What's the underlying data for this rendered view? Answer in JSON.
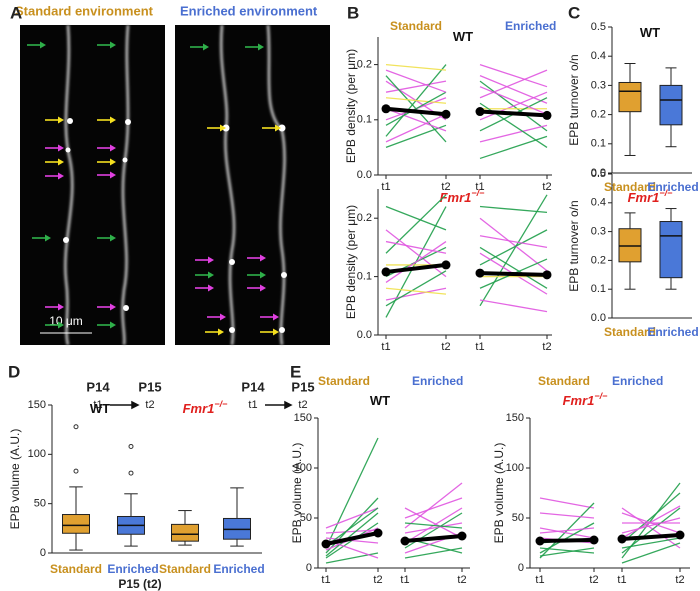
{
  "figure": {
    "panel_labels": [
      "A",
      "B",
      "C",
      "D",
      "E"
    ]
  },
  "panel_A": {
    "titles": [
      {
        "text": "Standard environment",
        "color": "#c8901e"
      },
      {
        "text": "Enriched environment",
        "color": "#4a6fd0"
      }
    ],
    "scale_bar": "10 μm",
    "timepoints": [
      {
        "day": "P14",
        "time": "t1"
      },
      {
        "day": "P15",
        "time": "t2"
      }
    ]
  },
  "chart_data": [
    {
      "type": "paired-line",
      "title": "WT",
      "title_color": "#111111",
      "ylabel": "EPB density (per μm)",
      "ylim": [
        0,
        0.25
      ],
      "yticks": [
        {
          "value": 0,
          "label": "0.0"
        },
        0.1,
        0.2
      ],
      "groups": [
        {
          "label": "Standard",
          "label_color": "#c8901e",
          "xticks": [
            "t1",
            "t2"
          ],
          "mean": [
            0.12,
            0.11
          ],
          "lines": [
            {
              "color": "#e055e0",
              "values": [
                0.17,
                0.1
              ]
            },
            {
              "color": "#e055e0",
              "values": [
                0.15,
                0.17
              ]
            },
            {
              "color": "#1f9e4a",
              "values": [
                0.07,
                0.2
              ]
            },
            {
              "color": "#1f9e4a",
              "values": [
                0.18,
                0.06
              ]
            },
            {
              "color": "#f0e04a",
              "values": [
                0.2,
                0.19
              ]
            },
            {
              "color": "#e055e0",
              "values": [
                0.1,
                0.14
              ]
            },
            {
              "color": "#1f9e4a",
              "values": [
                0.05,
                0.09
              ]
            },
            {
              "color": "#e055e0",
              "values": [
                0.12,
                0.08
              ]
            },
            {
              "color": "#f0e04a",
              "values": [
                0.14,
                0.13
              ]
            },
            {
              "color": "#1f9e4a",
              "values": [
                0.09,
                0.15
              ]
            },
            {
              "color": "#e055e0",
              "values": [
                0.06,
                0.11
              ]
            },
            {
              "color": "#e055e0",
              "values": [
                0.19,
                0.15
              ]
            }
          ]
        },
        {
          "label": "Enriched",
          "label_color": "#4a6fd0",
          "xticks": [
            "t1",
            "t2"
          ],
          "mean": [
            0.115,
            0.108
          ],
          "lines": [
            {
              "color": "#e055e0",
              "values": [
                0.18,
                0.13
              ]
            },
            {
              "color": "#1f9e4a",
              "values": [
                0.17,
                0.08
              ]
            },
            {
              "color": "#e055e0",
              "values": [
                0.14,
                0.19
              ]
            },
            {
              "color": "#1f9e4a",
              "values": [
                0.03,
                0.07
              ]
            },
            {
              "color": "#e055e0",
              "values": [
                0.1,
                0.15
              ]
            },
            {
              "color": "#f0e04a",
              "values": [
                0.12,
                0.12
              ]
            },
            {
              "color": "#1f9e4a",
              "values": [
                0.08,
                0.14
              ]
            },
            {
              "color": "#e055e0",
              "values": [
                0.16,
                0.11
              ]
            },
            {
              "color": "#e055e0",
              "values": [
                0.06,
                0.09
              ]
            },
            {
              "color": "#1f9e4a",
              "values": [
                0.13,
                0.05
              ]
            },
            {
              "color": "#e055e0",
              "values": [
                0.2,
                0.16
              ]
            }
          ]
        }
      ]
    },
    {
      "type": "paired-line",
      "title": "Fmr1",
      "title_sup": "−/−",
      "title_color": "#e0201e",
      "ylabel": "EPB density (per μm)",
      "ylim": [
        0,
        0.25
      ],
      "yticks": [
        {
          "value": 0,
          "label": "0.0"
        },
        0.1,
        0.2
      ],
      "groups": [
        {
          "xticks": [
            "t1",
            "t2"
          ],
          "mean": [
            0.108,
            0.12
          ],
          "lines": [
            {
              "color": "#1f9e4a",
              "values": [
                0.03,
                0.22
              ]
            },
            {
              "color": "#1f9e4a",
              "values": [
                0.14,
                0.24
              ]
            },
            {
              "color": "#e055e0",
              "values": [
                0.18,
                0.1
              ]
            },
            {
              "color": "#1f9e4a",
              "values": [
                0.1,
                0.15
              ]
            },
            {
              "color": "#f0e04a",
              "values": [
                0.12,
                0.12
              ]
            },
            {
              "color": "#e055e0",
              "values": [
                0.06,
                0.08
              ]
            },
            {
              "color": "#1f9e4a",
              "values": [
                0.22,
                0.18
              ]
            },
            {
              "color": "#e055e0",
              "values": [
                0.09,
                0.16
              ]
            },
            {
              "color": "#1f9e4a",
              "values": [
                0.05,
                0.11
              ]
            },
            {
              "color": "#e055e0",
              "values": [
                0.16,
                0.14
              ]
            },
            {
              "color": "#f0e04a",
              "values": [
                0.08,
                0.07
              ]
            }
          ]
        },
        {
          "xticks": [
            "t1",
            "t2"
          ],
          "mean": [
            0.106,
            0.103
          ],
          "lines": [
            {
              "color": "#1f9e4a",
              "values": [
                0.05,
                0.24
              ]
            },
            {
              "color": "#e055e0",
              "values": [
                0.2,
                0.11
              ]
            },
            {
              "color": "#1f9e4a",
              "values": [
                0.12,
                0.18
              ]
            },
            {
              "color": "#e055e0",
              "values": [
                0.14,
                0.07
              ]
            },
            {
              "color": "#f0e04a",
              "values": [
                0.1,
                0.1
              ]
            },
            {
              "color": "#1f9e4a",
              "values": [
                0.08,
                0.13
              ]
            },
            {
              "color": "#e055e0",
              "values": [
                0.17,
                0.15
              ]
            },
            {
              "color": "#1f9e4a",
              "values": [
                0.22,
                0.21
              ]
            },
            {
              "color": "#e055e0",
              "values": [
                0.06,
                0.04
              ]
            },
            {
              "color": "#1f9e4a",
              "values": [
                0.15,
                0.08
              ]
            }
          ]
        }
      ]
    },
    {
      "type": "box",
      "title": "WT",
      "title_color": "#111111",
      "ylabel": "EPB turnover o/n",
      "ylim": [
        0,
        0.5
      ],
      "yticks": [
        {
          "value": 0,
          "label": "0.0"
        },
        0.1,
        0.2,
        0.3,
        0.4,
        0.5
      ],
      "boxes": [
        {
          "label": "Standard",
          "label_color": "#c8901e",
          "color": "#e0a030",
          "whisker_low": 0.06,
          "q1": 0.21,
          "median": 0.28,
          "q3": 0.31,
          "whisker_high": 0.375
        },
        {
          "label": "Enriched",
          "label_color": "#4a6fd0",
          "color": "#4a78d8",
          "whisker_low": 0.09,
          "q1": 0.165,
          "median": 0.25,
          "q3": 0.3,
          "whisker_high": 0.36
        }
      ]
    },
    {
      "type": "box",
      "title": "Fmr1",
      "title_sup": "−/−",
      "title_color": "#e0201e",
      "ylabel": "EPB turnover o/n",
      "ylim": [
        0,
        0.5
      ],
      "yticks": [
        {
          "value": 0,
          "label": "0.0"
        },
        0.1,
        0.2,
        0.3,
        0.4,
        0.5
      ],
      "boxes": [
        {
          "label": "Standard",
          "label_color": "#c8901e",
          "color": "#e0a030",
          "whisker_low": 0.1,
          "q1": 0.195,
          "median": 0.25,
          "q3": 0.31,
          "whisker_high": 0.365
        },
        {
          "label": "Enriched",
          "label_color": "#4a6fd0",
          "color": "#4a78d8",
          "whisker_low": 0.1,
          "q1": 0.14,
          "median": 0.285,
          "q3": 0.335,
          "whisker_high": 0.38
        }
      ]
    },
    {
      "type": "box",
      "ylabel": "EPB volume (A.U.)",
      "xlabel": "P15 (t2)",
      "titles": [
        {
          "title": "WT",
          "title_color": "#111111"
        },
        {
          "title": "Fmr1",
          "title_sup": "−/−",
          "title_color": "#e0201e"
        }
      ],
      "ylim": [
        0,
        150
      ],
      "yticks": [
        0,
        50,
        100,
        150
      ],
      "boxes": [
        {
          "label": "Standard",
          "label_color": "#c8901e",
          "color": "#e0a030",
          "whisker_low": 3,
          "q1": 20,
          "median": 28,
          "q3": 39,
          "whisker_high": 67,
          "outliers": [
            83,
            128
          ]
        },
        {
          "label": "Enriched",
          "label_color": "#4a6fd0",
          "color": "#4a78d8",
          "whisker_low": 7,
          "q1": 19,
          "median": 28,
          "q3": 37,
          "whisker_high": 60,
          "outliers": [
            81,
            108
          ]
        },
        {
          "label": "Standard",
          "label_color": "#c8901e",
          "color": "#e0a030",
          "whisker_low": 8,
          "q1": 12,
          "median": 19,
          "q3": 29,
          "whisker_high": 43
        },
        {
          "label": "Enriched",
          "label_color": "#4a6fd0",
          "color": "#4a78d8",
          "whisker_low": 7,
          "q1": 14,
          "median": 24,
          "q3": 35,
          "whisker_high": 66
        }
      ]
    },
    {
      "type": "paired-line",
      "title": "WT",
      "title_color": "#111111",
      "ylabel": "EPB volume (A.U.)",
      "ylim": [
        0,
        150
      ],
      "yticks": [
        0,
        50,
        100,
        150
      ],
      "groups": [
        {
          "label": "Standard",
          "label_color": "#c8901e",
          "xticks": [
            "t1",
            "t2"
          ],
          "mean": [
            24,
            35
          ],
          "lines": [
            {
              "color": "#1f9e4a",
              "values": [
                20,
                130
              ]
            },
            {
              "color": "#1f9e4a",
              "values": [
                15,
                70
              ]
            },
            {
              "color": "#e055e0",
              "values": [
                40,
                60
              ]
            },
            {
              "color": "#1f9e4a",
              "values": [
                10,
                45
              ]
            },
            {
              "color": "#e055e0",
              "values": [
                30,
                25
              ]
            },
            {
              "color": "#1f9e4a",
              "values": [
                25,
                35
              ]
            },
            {
              "color": "#e055e0",
              "values": [
                18,
                40
              ]
            },
            {
              "color": "#1f9e4a",
              "values": [
                5,
                15
              ]
            },
            {
              "color": "#e055e0",
              "values": [
                35,
                38
              ]
            },
            {
              "color": "#1f9e4a",
              "values": [
                12,
                55
              ]
            },
            {
              "color": "#e055e0",
              "values": [
                28,
                10
              ]
            },
            {
              "color": "#1f9e4a",
              "values": [
                22,
                60
              ]
            }
          ]
        },
        {
          "label": "Enriched",
          "label_color": "#4a6fd0",
          "xticks": [
            "t1",
            "t2"
          ],
          "mean": [
            27,
            32
          ],
          "lines": [
            {
              "color": "#e055e0",
              "values": [
                40,
                85
              ]
            },
            {
              "color": "#e055e0",
              "values": [
                60,
                30
              ]
            },
            {
              "color": "#1f9e4a",
              "values": [
                20,
                55
              ]
            },
            {
              "color": "#e055e0",
              "values": [
                35,
                45
              ]
            },
            {
              "color": "#1f9e4a",
              "values": [
                10,
                20
              ]
            },
            {
              "color": "#e055e0",
              "values": [
                25,
                60
              ]
            },
            {
              "color": "#1f9e4a",
              "values": [
                30,
                15
              ]
            },
            {
              "color": "#e055e0",
              "values": [
                15,
                35
              ]
            },
            {
              "color": "#1f9e4a",
              "values": [
                45,
                40
              ]
            },
            {
              "color": "#e055e0",
              "values": [
                50,
                70
              ]
            }
          ]
        }
      ]
    },
    {
      "type": "paired-line",
      "title": "Fmr1",
      "title_sup": "−/−",
      "title_color": "#e0201e",
      "ylabel": "EPB volume (A.U.)",
      "ylim": [
        0,
        150
      ],
      "yticks": [
        0,
        50,
        100,
        150
      ],
      "groups": [
        {
          "label": "Standard",
          "label_color": "#c8901e",
          "xticks": [
            "t1",
            "t2"
          ],
          "mean": [
            27,
            28
          ],
          "lines": [
            {
              "color": "#e055e0",
              "values": [
                70,
                60
              ]
            },
            {
              "color": "#1f9e4a",
              "values": [
                10,
                65
              ]
            },
            {
              "color": "#e055e0",
              "values": [
                40,
                30
              ]
            },
            {
              "color": "#1f9e4a",
              "values": [
                25,
                30
              ]
            },
            {
              "color": "#e055e0",
              "values": [
                30,
                25
              ]
            },
            {
              "color": "#1f9e4a",
              "values": [
                15,
                45
              ]
            },
            {
              "color": "#e055e0",
              "values": [
                55,
                50
              ]
            },
            {
              "color": "#1f9e4a",
              "values": [
                20,
                15
              ]
            },
            {
              "color": "#e055e0",
              "values": [
                35,
                40
              ]
            },
            {
              "color": "#1f9e4a",
              "values": [
                12,
                20
              ]
            }
          ]
        },
        {
          "label": "Enriched",
          "label_color": "#4a6fd0",
          "xticks": [
            "t1",
            "t2"
          ],
          "mean": [
            29,
            33
          ],
          "lines": [
            {
              "color": "#1f9e4a",
              "values": [
                10,
                85
              ]
            },
            {
              "color": "#e055e0",
              "values": [
                60,
                20
              ]
            },
            {
              "color": "#1f9e4a",
              "values": [
                25,
                75
              ]
            },
            {
              "color": "#e055e0",
              "values": [
                35,
                50
              ]
            },
            {
              "color": "#1f9e4a",
              "values": [
                15,
                60
              ]
            },
            {
              "color": "#e055e0",
              "values": [
                45,
                45
              ]
            },
            {
              "color": "#1f9e4a",
              "values": [
                20,
                30
              ]
            },
            {
              "color": "#e055e0",
              "values": [
                55,
                35
              ]
            },
            {
              "color": "#1f9e4a",
              "values": [
                5,
                25
              ]
            },
            {
              "color": "#e055e0",
              "values": [
                30,
                62
              ]
            }
          ]
        }
      ]
    }
  ]
}
